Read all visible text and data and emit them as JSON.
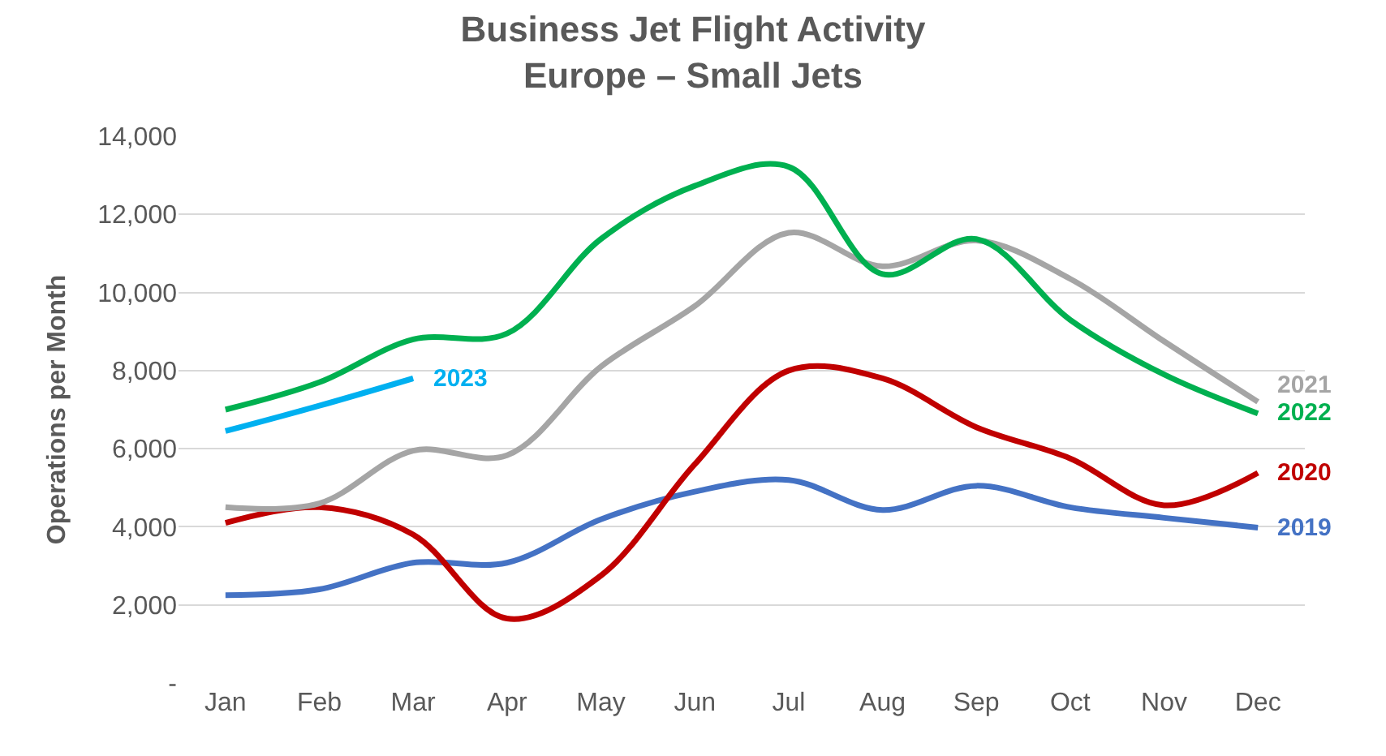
{
  "chart_data": {
    "type": "line",
    "title": "Business Jet Flight Activity",
    "subtitle": "Europe – Small Jets",
    "ylabel": "Operations per Month",
    "categories": [
      "Jan",
      "Feb",
      "Mar",
      "Apr",
      "May",
      "Jun",
      "Jul",
      "Aug",
      "Sep",
      "Oct",
      "Nov",
      "Dec"
    ],
    "series": [
      {
        "name": "2019",
        "color": "#4472c4",
        "values": [
          2250,
          2400,
          3080,
          3080,
          4190,
          4900,
          5200,
          4430,
          5050,
          4500,
          4230,
          3980
        ]
      },
      {
        "name": "2020",
        "color": "#c00000",
        "values": [
          4100,
          4500,
          3800,
          1650,
          2750,
          5600,
          8000,
          7800,
          6550,
          5750,
          4550,
          5380
        ]
      },
      {
        "name": "2021",
        "color": "#a5a5a5",
        "values": [
          4500,
          4600,
          5950,
          5830,
          8100,
          9650,
          11530,
          10670,
          11330,
          10350,
          8750,
          7200
        ]
      },
      {
        "name": "2022",
        "color": "#00b050",
        "values": [
          7000,
          7700,
          8800,
          8950,
          11370,
          12730,
          13220,
          10470,
          11370,
          9300,
          7900,
          6900
        ]
      },
      {
        "name": "2023",
        "color": "#00b0f0",
        "values": [
          6450,
          7100,
          7800,
          null,
          null,
          null,
          null,
          null,
          null,
          null,
          null,
          null
        ]
      }
    ],
    "ylim": [
      0,
      14000
    ],
    "yticks": [
      {
        "value": 0,
        "label": "-"
      },
      {
        "value": 2000,
        "label": "2,000"
      },
      {
        "value": 4000,
        "label": "4,000"
      },
      {
        "value": 6000,
        "label": "6,000"
      },
      {
        "value": 8000,
        "label": "8,000"
      },
      {
        "value": 10000,
        "label": "10,000"
      },
      {
        "value": 12000,
        "label": "12,000"
      },
      {
        "value": 14000,
        "label": "14,000"
      }
    ],
    "grid": "y",
    "legend": false,
    "marker": "none",
    "line_style": "solid"
  }
}
